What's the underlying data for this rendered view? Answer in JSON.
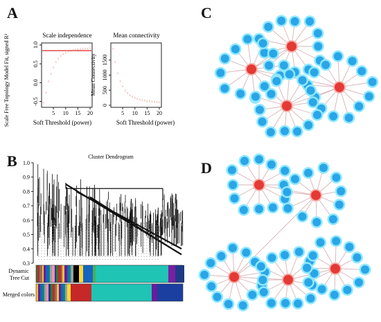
{
  "panels": {
    "a": "A",
    "b": "B",
    "c": "C",
    "d": "D"
  },
  "colors": {
    "scale_curve": "#e8877e",
    "threshold_line": "#e02020",
    "mean_curve": "#e8877e",
    "dynamic_main": "#1fc4b5",
    "merged_main": "#1fc4b5",
    "hub_node": "#e53935",
    "gene_node": "#29a6e8",
    "gene_halo": "#8fe8ff",
    "edge": "#d7b3b8"
  },
  "chart_data": [
    {
      "id": "scale_independence",
      "type": "scatter",
      "title": "Scale independence",
      "xlabel": "Soft Threshold (power)",
      "ylabel": "Scale Free Topology Model Fit, signed R²",
      "xlim": [
        1,
        20
      ],
      "ylim": [
        -0.6,
        1.0
      ],
      "xticks": [
        "5",
        "10",
        "15",
        "20"
      ],
      "yticks": [
        "-0.5",
        "0.0",
        "0.5",
        "1.0"
      ],
      "threshold": 0.85,
      "x": [
        1,
        2,
        3,
        4,
        5,
        6,
        7,
        8,
        9,
        10,
        11,
        12,
        13,
        14,
        15,
        16,
        17,
        18,
        19,
        20
      ],
      "y": [
        -0.52,
        -0.25,
        0.05,
        0.25,
        0.42,
        0.56,
        0.65,
        0.72,
        0.77,
        0.81,
        0.84,
        0.86,
        0.88,
        0.89,
        0.9,
        0.91,
        0.91,
        0.92,
        0.92,
        0.93
      ]
    },
    {
      "id": "mean_connectivity",
      "type": "scatter",
      "title": "Mean connectivity",
      "xlabel": "Soft Threshold (power)",
      "ylabel": "Mean Connectivity",
      "xlim": [
        1,
        20
      ],
      "ylim": [
        0,
        2000
      ],
      "xticks": [
        "5",
        "10",
        "15",
        "20"
      ],
      "yticks": [
        "0",
        "500",
        "1000",
        "1500"
      ],
      "x": [
        1,
        2,
        3,
        4,
        5,
        6,
        7,
        8,
        9,
        10,
        11,
        12,
        13,
        14,
        15,
        16,
        17,
        18,
        19,
        20
      ],
      "y": [
        1900,
        1450,
        1080,
        820,
        640,
        510,
        420,
        350,
        300,
        260,
        230,
        205,
        185,
        170,
        155,
        145,
        135,
        128,
        121,
        115
      ]
    },
    {
      "id": "cluster_dendrogram",
      "type": "dendrogram",
      "title": "Cluster Dendrogram",
      "ylim": [
        0.3,
        1.0
      ],
      "yticks": [
        "0.3",
        "0.4",
        "0.5",
        "0.6",
        "0.7",
        "0.8",
        "0.9",
        "1.0"
      ],
      "row_labels": [
        "Dynamic Tree Cut",
        "Merged colors"
      ]
    },
    {
      "id": "network_c",
      "type": "network",
      "hubs": 4,
      "genes_per_hub": [
        13,
        12,
        13,
        14
      ]
    },
    {
      "id": "network_d",
      "type": "network",
      "hubs": 5,
      "genes_per_hub": [
        12,
        11,
        13,
        13,
        12
      ]
    }
  ]
}
